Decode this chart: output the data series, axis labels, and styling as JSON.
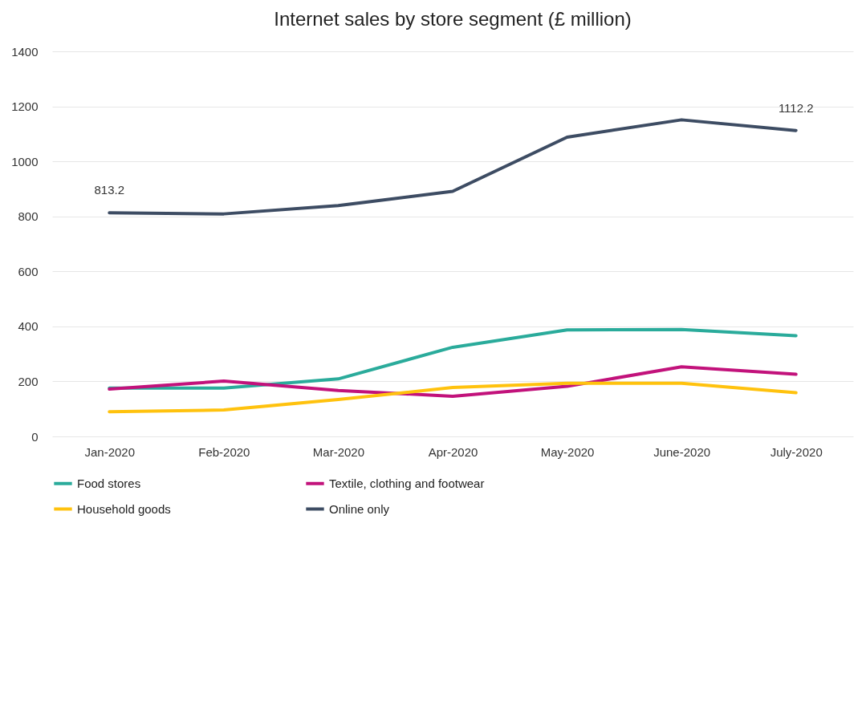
{
  "chart_data": {
    "type": "line",
    "title": "Internet sales by store segment (£ million)",
    "categories": [
      "Jan-2020",
      "Feb-2020",
      "Mar-2020",
      "Apr-2020",
      "May-2020",
      "June-2020",
      "July-2020"
    ],
    "series": [
      {
        "name": "Food stores",
        "color": "#2aab9b",
        "values": [
          176,
          176,
          209,
          324,
          387,
          389,
          366
        ]
      },
      {
        "name": "Textile, clothing and footwear",
        "color": "#c2127b",
        "values": [
          172,
          201,
          167,
          146,
          182,
          253,
          226
        ]
      },
      {
        "name": "Household goods",
        "color": "#ffc20e",
        "values": [
          90,
          96,
          134,
          178,
          193,
          193,
          159
        ]
      },
      {
        "name": "Online only",
        "color": "#3d4c63",
        "values": [
          813.2,
          809,
          839,
          891,
          1088,
          1151,
          1112.2
        ],
        "value_labels": [
          "813.2",
          null,
          null,
          null,
          null,
          null,
          "1112.2"
        ]
      }
    ],
    "ylim": [
      0,
      1400
    ],
    "yticks": [
      0,
      200,
      400,
      600,
      800,
      1000,
      1200,
      1400
    ],
    "grid": "y",
    "legend": "bottom"
  }
}
